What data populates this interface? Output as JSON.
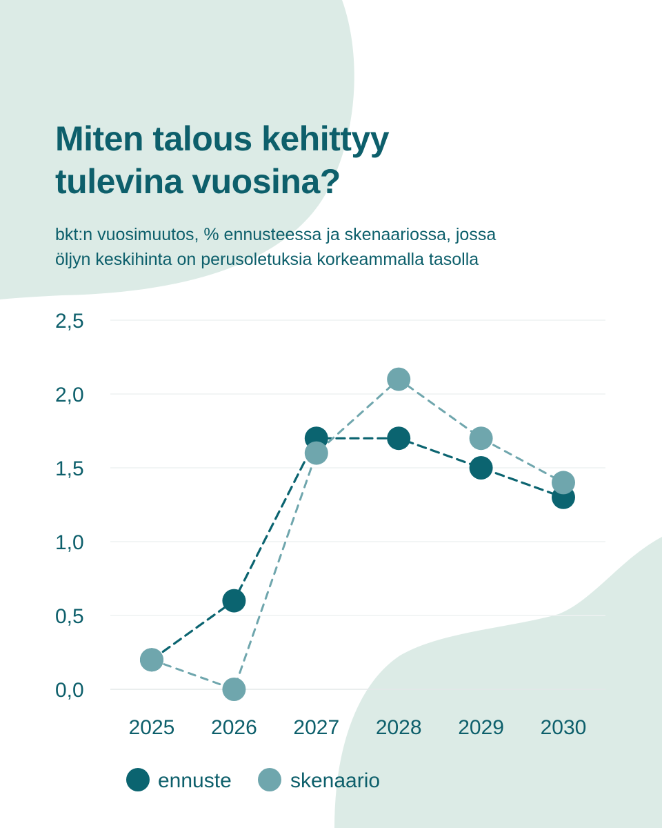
{
  "title_line1": "Miten talous kehittyy",
  "title_line2": "tulevina vuosina?",
  "subtitle_line1": "bkt:n vuosimuutos, % ennusteessa ja skenaariossa, jossa",
  "subtitle_line2": "öljyn keskihinta on perusoletuksia korkeammalla tasolla",
  "colors": {
    "ennuste": "#0b6470",
    "skenaario": "#6fa6ad",
    "background_blob": "#dcebe6",
    "gridline": "#eef2f2",
    "text": "#0d5f6b"
  },
  "chart_data": {
    "type": "line",
    "x": [
      "2025",
      "2026",
      "2027",
      "2028",
      "2029",
      "2030"
    ],
    "series": [
      {
        "name": "ennuste",
        "values": [
          0.2,
          0.6,
          1.7,
          1.7,
          1.5,
          1.3
        ]
      },
      {
        "name": "skenaario",
        "values": [
          0.2,
          0.0,
          1.6,
          2.1,
          1.7,
          1.4
        ]
      }
    ],
    "yticks": [
      "0,0",
      "0,5",
      "1,0",
      "1,5",
      "2,0",
      "2,5"
    ],
    "ylim": [
      0,
      2.5
    ],
    "grid": true,
    "line_style": "dashed",
    "markers": "circle",
    "legend_position": "bottom-left"
  }
}
